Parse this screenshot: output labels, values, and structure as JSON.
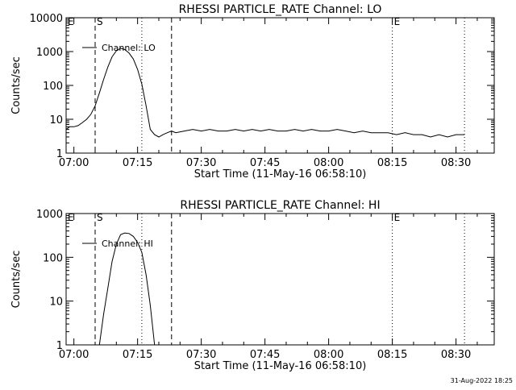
{
  "footer_stamp": "31-Aug-2022 18:25",
  "chart_data": [
    {
      "type": "line",
      "title": "RHESSI PARTICLE_RATE Channel: LO",
      "xlabel": "Start Time (11-May-16 06:58:10)",
      "ylabel": "Counts/sec",
      "y_scale": "log",
      "ylim": [
        1,
        10000
      ],
      "xlim": [
        "06:58:10",
        "08:39:00"
      ],
      "x_ticks": [
        "07:00",
        "07:15",
        "07:30",
        "07:45",
        "08:00",
        "08:15",
        "08:30"
      ],
      "y_ticks": [
        "1",
        "10",
        "100",
        "1000",
        "10000"
      ],
      "legend": {
        "label": "Channel: LO",
        "placement": "top-left"
      },
      "markers": [
        {
          "label": "E",
          "time": "06:58:10",
          "style": "dotted"
        },
        {
          "label": "S",
          "time": "07:05",
          "style": "dashed"
        },
        {
          "label": "",
          "time": "07:16",
          "style": "dotted"
        },
        {
          "label": "",
          "time": "07:23",
          "style": "dashed"
        },
        {
          "label": "E",
          "time": "08:15",
          "style": "dotted"
        },
        {
          "label": "",
          "time": "08:32",
          "style": "dotted"
        }
      ],
      "series": [
        {
          "name": "Channel: LO",
          "x": [
            "06:58:10",
            "06:59",
            "07:00",
            "07:01",
            "07:02",
            "07:03",
            "07:04",
            "07:05",
            "07:06",
            "07:07",
            "07:08",
            "07:09",
            "07:10",
            "07:11",
            "07:12",
            "07:13",
            "07:14",
            "07:15",
            "07:16",
            "07:17",
            "07:18",
            "07:19",
            "07:20",
            "07:21",
            "07:22",
            "07:23",
            "07:24",
            "07:26",
            "07:28",
            "07:30",
            "07:32",
            "07:34",
            "07:36",
            "07:38",
            "07:40",
            "07:42",
            "07:44",
            "07:46",
            "07:48",
            "07:50",
            "07:52",
            "07:54",
            "07:56",
            "07:58",
            "08:00",
            "08:02",
            "08:04",
            "08:06",
            "08:08",
            "08:10",
            "08:12",
            "08:14",
            "08:16",
            "08:18",
            "08:20",
            "08:22",
            "08:24",
            "08:26",
            "08:28",
            "08:30",
            "08:32"
          ],
          "y": [
            5,
            6,
            6,
            6.5,
            8,
            10,
            14,
            25,
            60,
            150,
            350,
            700,
            1050,
            1250,
            1150,
            900,
            600,
            300,
            110,
            25,
            5,
            3.5,
            3,
            3.5,
            4,
            4.5,
            4,
            4.5,
            5,
            4.5,
            5,
            4.5,
            4.5,
            5,
            4.5,
            5,
            4.5,
            5,
            4.5,
            4.5,
            5,
            4.5,
            5,
            4.5,
            4.5,
            5,
            4.5,
            4,
            4.5,
            4,
            4,
            4,
            3.5,
            4,
            3.5,
            3.5,
            3,
            3.5,
            3,
            3.5,
            3.5
          ]
        }
      ]
    },
    {
      "type": "line",
      "title": "RHESSI PARTICLE_RATE Channel: HI",
      "xlabel": "Start Time (11-May-16 06:58:10)",
      "ylabel": "Counts/sec",
      "y_scale": "log",
      "ylim": [
        1,
        1000
      ],
      "xlim": [
        "06:58:10",
        "08:39:00"
      ],
      "x_ticks": [
        "07:00",
        "07:15",
        "07:30",
        "07:45",
        "08:00",
        "08:15",
        "08:30"
      ],
      "y_ticks": [
        "1",
        "10",
        "100",
        "1000"
      ],
      "legend": {
        "label": "Channel: HI",
        "placement": "top-left"
      },
      "markers": [
        {
          "label": "E",
          "time": "06:58:10",
          "style": "dotted"
        },
        {
          "label": "S",
          "time": "07:05",
          "style": "dashed"
        },
        {
          "label": "",
          "time": "07:16",
          "style": "dotted"
        },
        {
          "label": "",
          "time": "07:23",
          "style": "dashed"
        },
        {
          "label": "E",
          "time": "08:15",
          "style": "dotted"
        },
        {
          "label": "",
          "time": "08:32",
          "style": "dotted"
        }
      ],
      "series": [
        {
          "name": "Channel: HI",
          "x": [
            "07:06",
            "07:07",
            "07:08",
            "07:09",
            "07:10",
            "07:11",
            "07:12",
            "07:13",
            "07:14",
            "07:15",
            "07:16",
            "07:17",
            "07:18",
            "07:19"
          ],
          "y": [
            1,
            5,
            20,
            80,
            200,
            330,
            360,
            350,
            300,
            220,
            130,
            40,
            8,
            1
          ]
        }
      ]
    }
  ]
}
